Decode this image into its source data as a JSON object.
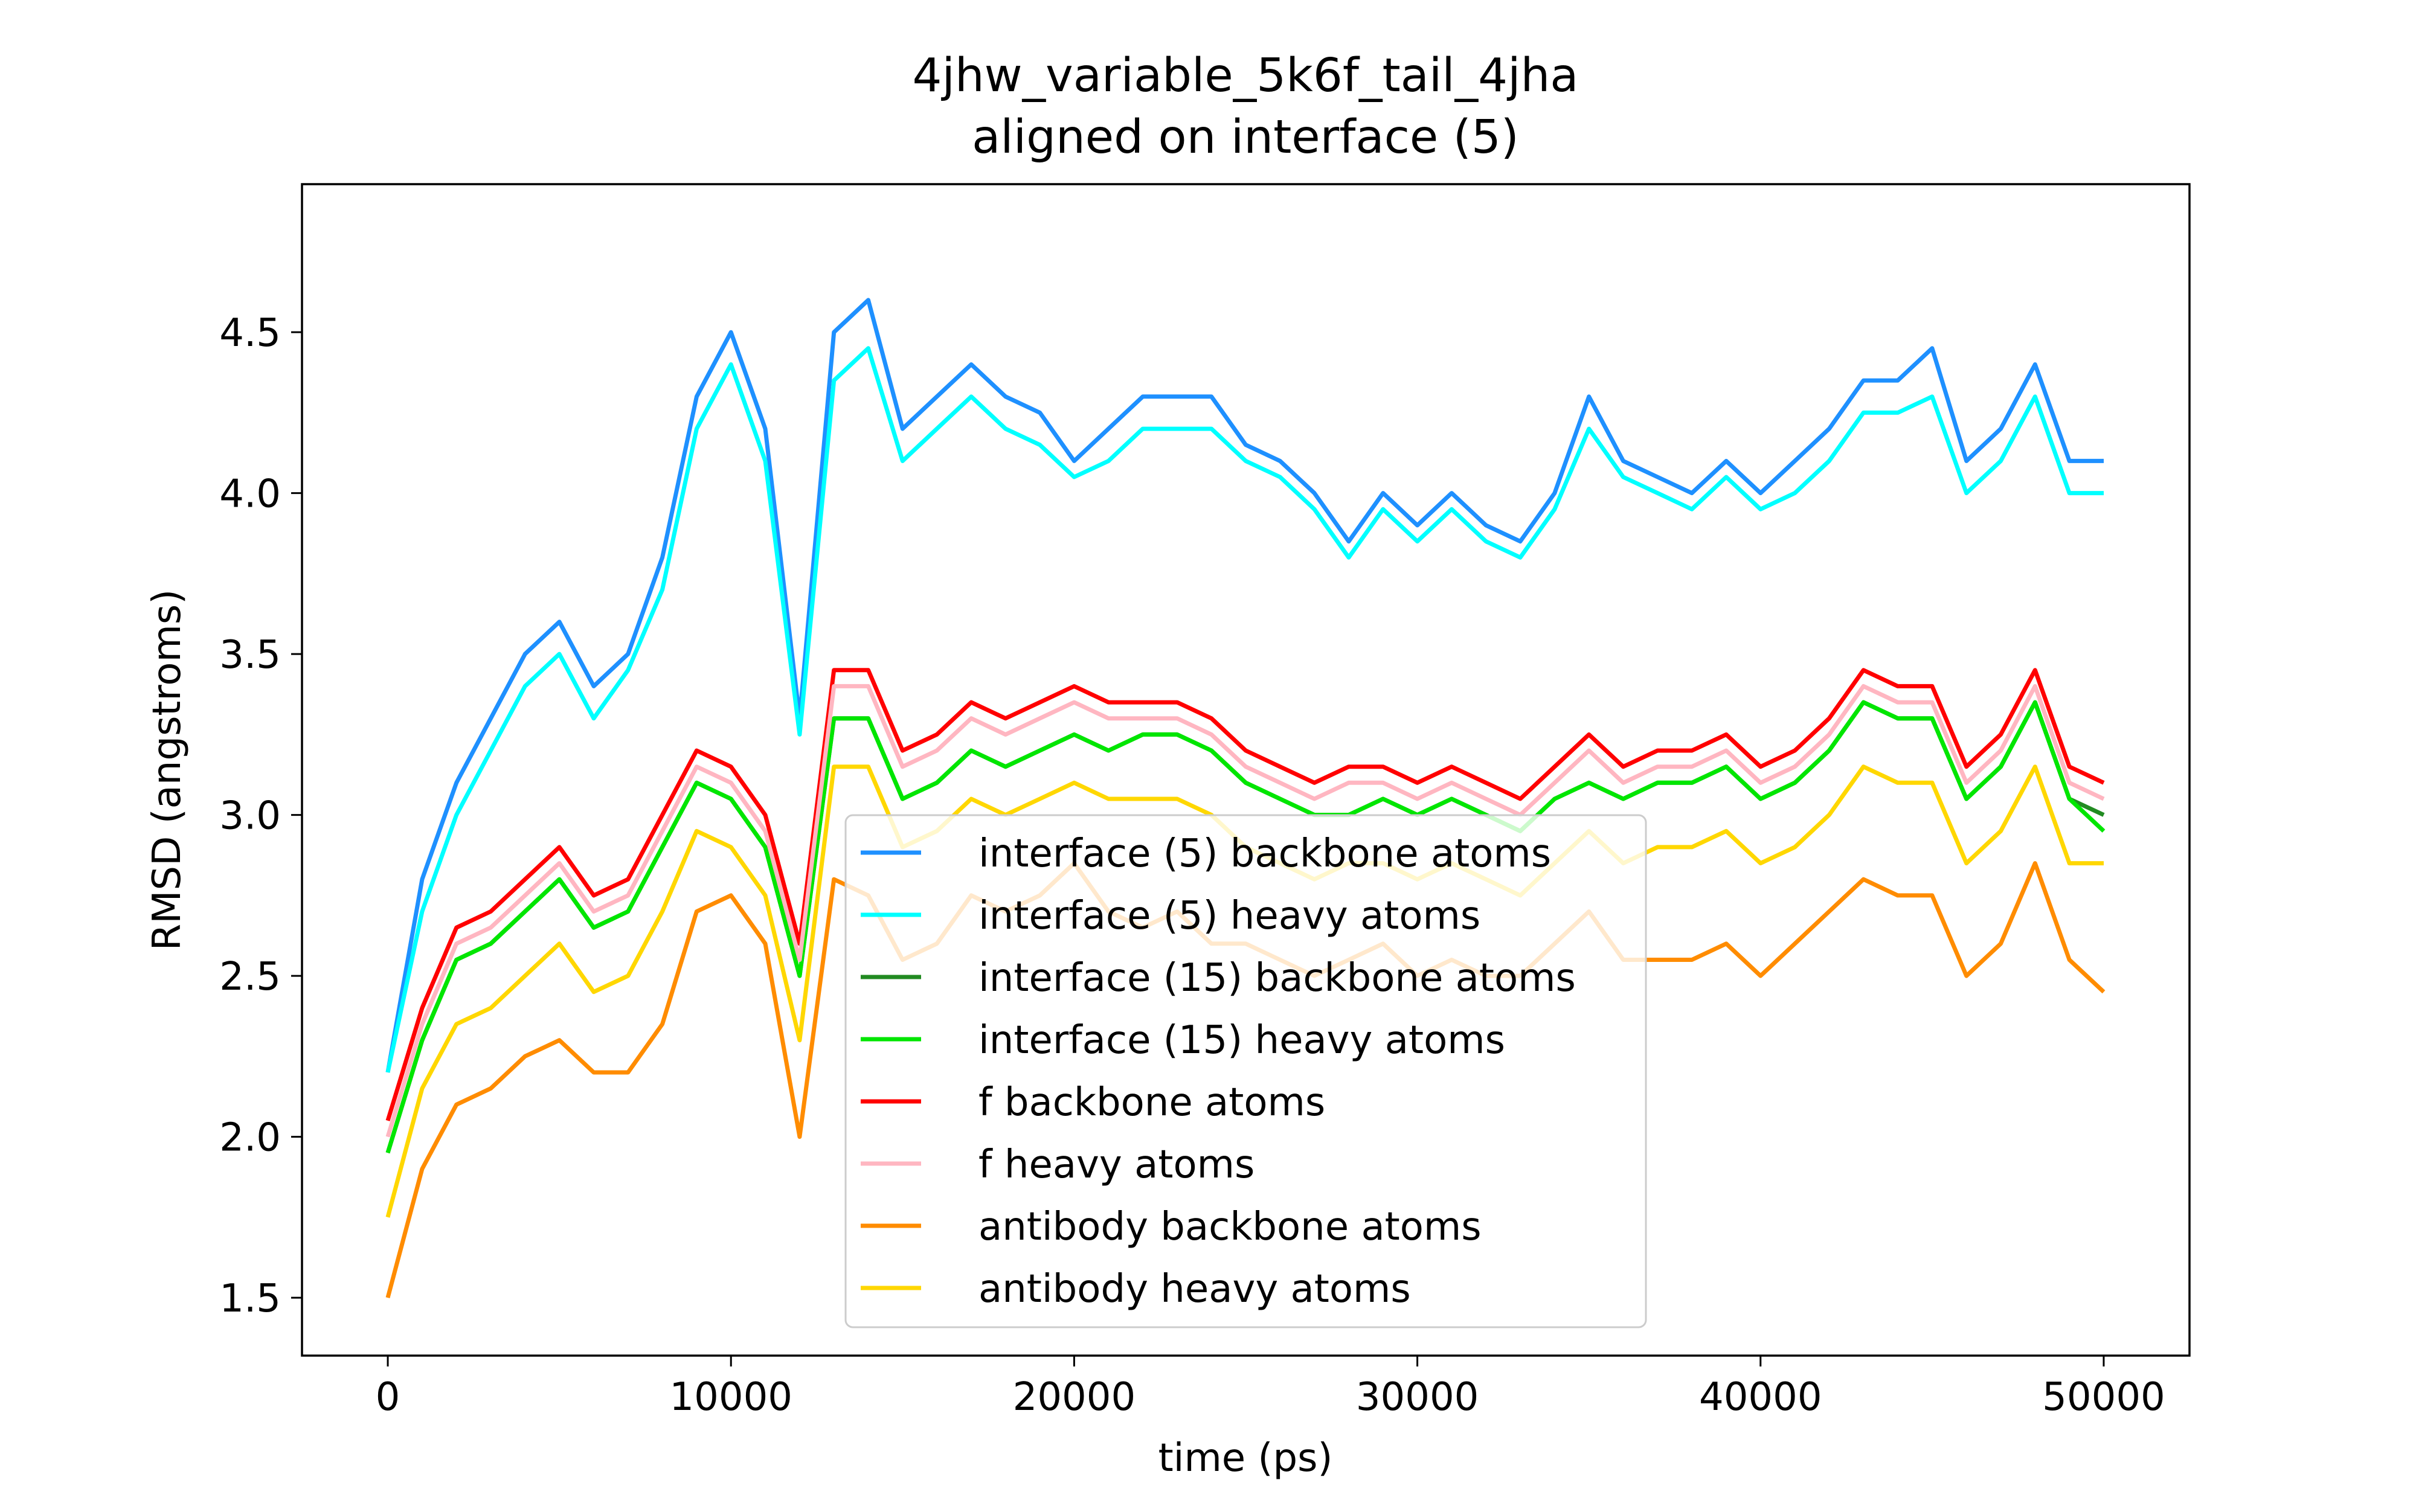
{
  "chart_data": {
    "type": "line",
    "title": "4jhw_variable_5k6f_tail_4jha",
    "subtitle": "aligned on interface (5)",
    "xlabel": "time (ps)",
    "ylabel": "RMSD (angstroms)",
    "xlim": [
      -2500,
      52500
    ],
    "ylim": [
      1.32,
      4.96
    ],
    "xticks": [
      0,
      10000,
      20000,
      30000,
      40000,
      50000
    ],
    "xtick_labels": [
      "0",
      "10000",
      "20000",
      "30000",
      "40000",
      "50000"
    ],
    "yticks": [
      1.5,
      2.0,
      2.5,
      3.0,
      3.5,
      4.0,
      4.5
    ],
    "ytick_labels": [
      "1.5",
      "2.0",
      "2.5",
      "3.0",
      "3.5",
      "4.0",
      "4.5"
    ],
    "grid": false,
    "legend_position": "lower-center",
    "x": [
      0,
      1000,
      2000,
      3000,
      4000,
      5000,
      6000,
      7000,
      8000,
      9000,
      10000,
      11000,
      12000,
      13000,
      14000,
      15000,
      16000,
      17000,
      18000,
      19000,
      20000,
      21000,
      22000,
      23000,
      24000,
      25000,
      26000,
      27000,
      28000,
      29000,
      30000,
      31000,
      32000,
      33000,
      34000,
      35000,
      36000,
      37000,
      38000,
      39000,
      40000,
      41000,
      42000,
      43000,
      44000,
      45000,
      46000,
      47000,
      48000,
      49000,
      50000
    ],
    "series": [
      {
        "name": "interface (5) backbone atoms",
        "color": "#1e90ff",
        "values": [
          2.2,
          2.8,
          3.1,
          3.3,
          3.5,
          3.6,
          3.4,
          3.5,
          3.8,
          4.3,
          4.5,
          4.2,
          3.3,
          4.5,
          4.6,
          4.2,
          4.3,
          4.4,
          4.3,
          4.25,
          4.1,
          4.2,
          4.3,
          4.3,
          4.3,
          4.15,
          4.1,
          4.0,
          3.85,
          4.0,
          3.9,
          4.0,
          3.9,
          3.85,
          4.0,
          4.3,
          4.1,
          4.05,
          4.0,
          4.1,
          4.0,
          4.1,
          4.2,
          4.35,
          4.35,
          4.45,
          4.1,
          4.2,
          4.4,
          4.1,
          4.1
        ]
      },
      {
        "name": "interface (5) heavy atoms",
        "color": "#00ffff",
        "values": [
          2.2,
          2.7,
          3.0,
          3.2,
          3.4,
          3.5,
          3.3,
          3.45,
          3.7,
          4.2,
          4.4,
          4.1,
          3.25,
          4.35,
          4.45,
          4.1,
          4.2,
          4.3,
          4.2,
          4.15,
          4.05,
          4.1,
          4.2,
          4.2,
          4.2,
          4.1,
          4.05,
          3.95,
          3.8,
          3.95,
          3.85,
          3.95,
          3.85,
          3.8,
          3.95,
          4.2,
          4.05,
          4.0,
          3.95,
          4.05,
          3.95,
          4.0,
          4.1,
          4.25,
          4.25,
          4.3,
          4.0,
          4.1,
          4.3,
          4.0,
          4.0
        ]
      },
      {
        "name": "interface (15) backbone atoms",
        "color": "#228b22",
        "values": [
          1.95,
          2.3,
          2.55,
          2.6,
          2.7,
          2.8,
          2.65,
          2.7,
          2.9,
          3.1,
          3.05,
          2.9,
          2.5,
          3.3,
          3.3,
          3.05,
          3.1,
          3.2,
          3.15,
          3.2,
          3.25,
          3.2,
          3.25,
          3.25,
          3.2,
          3.1,
          3.05,
          3.0,
          3.0,
          3.05,
          3.0,
          3.05,
          3.0,
          2.95,
          3.05,
          3.1,
          3.05,
          3.1,
          3.1,
          3.15,
          3.05,
          3.1,
          3.2,
          3.35,
          3.3,
          3.3,
          3.05,
          3.15,
          3.35,
          3.05,
          3.0
        ]
      },
      {
        "name": "interface (15) heavy atoms",
        "color": "#00e600",
        "values": [
          1.95,
          2.3,
          2.55,
          2.6,
          2.7,
          2.8,
          2.65,
          2.7,
          2.9,
          3.1,
          3.05,
          2.9,
          2.5,
          3.3,
          3.3,
          3.05,
          3.1,
          3.2,
          3.15,
          3.2,
          3.25,
          3.2,
          3.25,
          3.25,
          3.2,
          3.1,
          3.05,
          3.0,
          3.0,
          3.05,
          3.0,
          3.05,
          3.0,
          2.95,
          3.05,
          3.1,
          3.05,
          3.1,
          3.1,
          3.15,
          3.05,
          3.1,
          3.2,
          3.35,
          3.3,
          3.3,
          3.05,
          3.15,
          3.35,
          3.05,
          2.95
        ]
      },
      {
        "name": "f backbone atoms",
        "color": "#ff0000",
        "values": [
          2.05,
          2.4,
          2.65,
          2.7,
          2.8,
          2.9,
          2.75,
          2.8,
          3.0,
          3.2,
          3.15,
          3.0,
          2.6,
          3.45,
          3.45,
          3.2,
          3.25,
          3.35,
          3.3,
          3.35,
          3.4,
          3.35,
          3.35,
          3.35,
          3.3,
          3.2,
          3.15,
          3.1,
          3.15,
          3.15,
          3.1,
          3.15,
          3.1,
          3.05,
          3.15,
          3.25,
          3.15,
          3.2,
          3.2,
          3.25,
          3.15,
          3.2,
          3.3,
          3.45,
          3.4,
          3.4,
          3.15,
          3.25,
          3.45,
          3.15,
          3.1
        ]
      },
      {
        "name": "f heavy atoms",
        "color": "#ffb6c1",
        "values": [
          2.0,
          2.35,
          2.6,
          2.65,
          2.75,
          2.85,
          2.7,
          2.75,
          2.95,
          3.15,
          3.1,
          2.95,
          2.55,
          3.4,
          3.4,
          3.15,
          3.2,
          3.3,
          3.25,
          3.3,
          3.35,
          3.3,
          3.3,
          3.3,
          3.25,
          3.15,
          3.1,
          3.05,
          3.1,
          3.1,
          3.05,
          3.1,
          3.05,
          3.0,
          3.1,
          3.2,
          3.1,
          3.15,
          3.15,
          3.2,
          3.1,
          3.15,
          3.25,
          3.4,
          3.35,
          3.35,
          3.1,
          3.2,
          3.4,
          3.1,
          3.05
        ]
      },
      {
        "name": "antibody backbone atoms",
        "color": "#ff8c00",
        "values": [
          1.5,
          1.9,
          2.1,
          2.15,
          2.25,
          2.3,
          2.2,
          2.2,
          2.35,
          2.7,
          2.75,
          2.6,
          2.0,
          2.8,
          2.75,
          2.55,
          2.6,
          2.75,
          2.7,
          2.75,
          2.85,
          2.7,
          2.65,
          2.7,
          2.6,
          2.6,
          2.55,
          2.5,
          2.55,
          2.6,
          2.5,
          2.55,
          2.5,
          2.5,
          2.6,
          2.7,
          2.55,
          2.55,
          2.55,
          2.6,
          2.5,
          2.6,
          2.7,
          2.8,
          2.75,
          2.75,
          2.5,
          2.6,
          2.85,
          2.55,
          2.45
        ]
      },
      {
        "name": "antibody heavy atoms",
        "color": "#ffd700",
        "values": [
          1.75,
          2.15,
          2.35,
          2.4,
          2.5,
          2.6,
          2.45,
          2.5,
          2.7,
          2.95,
          2.9,
          2.75,
          2.3,
          3.15,
          3.15,
          2.9,
          2.95,
          3.05,
          3.0,
          3.05,
          3.1,
          3.05,
          3.05,
          3.05,
          3.0,
          2.9,
          2.85,
          2.8,
          2.85,
          2.85,
          2.8,
          2.85,
          2.8,
          2.75,
          2.85,
          2.95,
          2.85,
          2.9,
          2.9,
          2.95,
          2.85,
          2.9,
          3.0,
          3.15,
          3.1,
          3.1,
          2.85,
          2.95,
          3.15,
          2.85,
          2.85
        ]
      }
    ]
  }
}
